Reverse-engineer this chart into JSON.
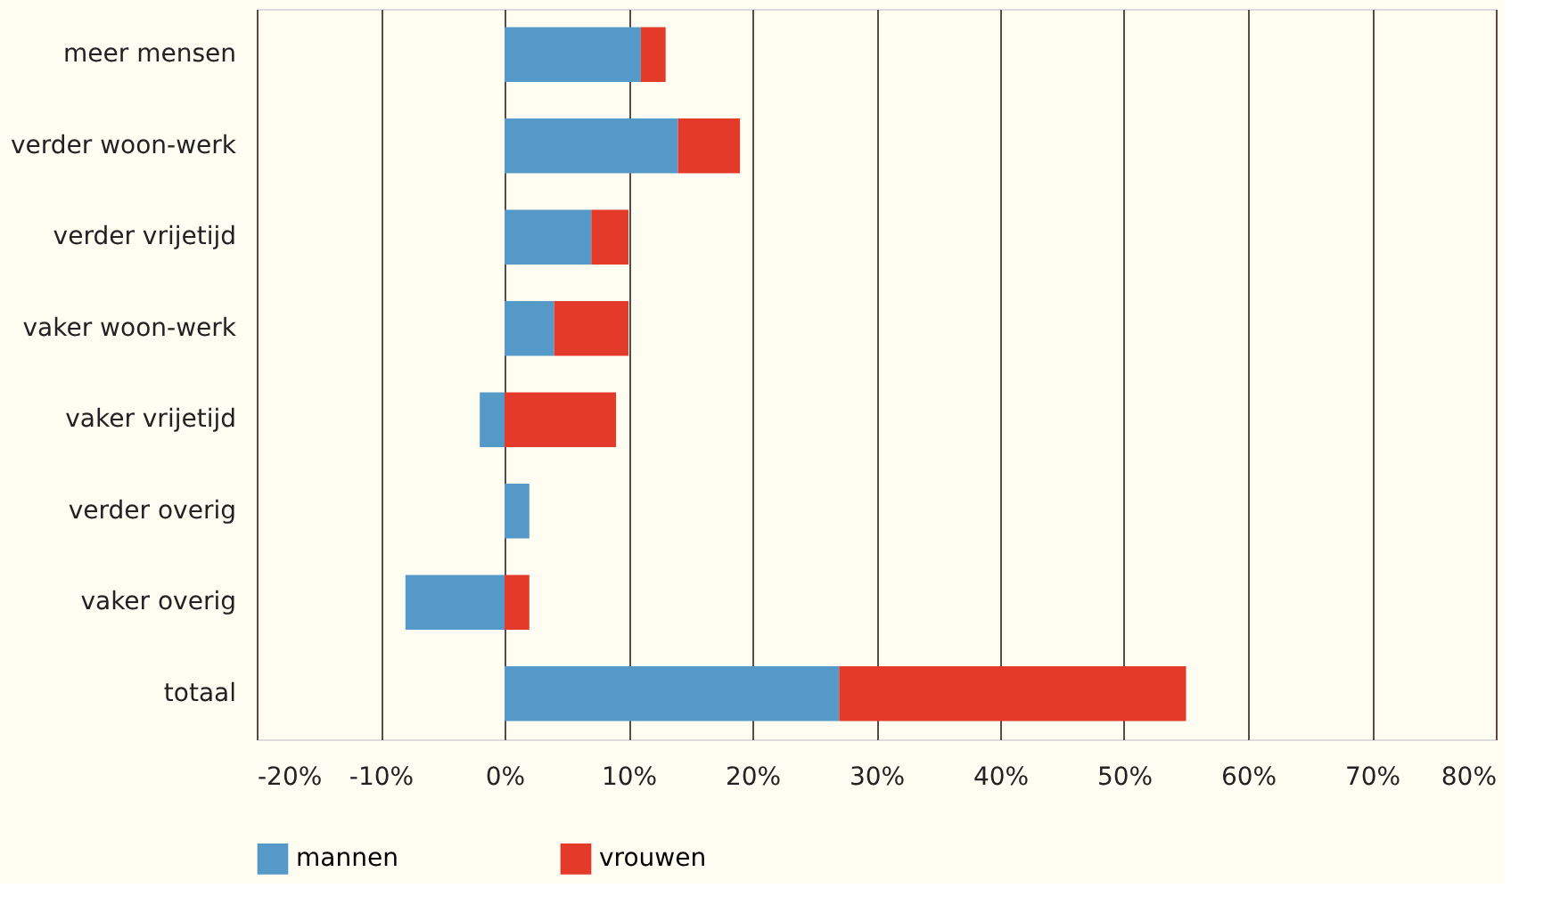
{
  "chart_data": {
    "type": "bar",
    "orientation": "horizontal",
    "stacked": true,
    "categories": [
      "meer mensen",
      "verder woon-werk",
      "verder vrijetijd",
      "vaker woon-werk",
      "vaker vrijetijd",
      "verder overig",
      "vaker overig",
      "totaal"
    ],
    "series": [
      {
        "name": "mannen",
        "color": "#5499c7",
        "values": [
          11,
          14,
          7,
          4,
          -2,
          2,
          -8,
          27
        ]
      },
      {
        "name": "vrouwen",
        "color": "#e33a29",
        "values": [
          2,
          5,
          3,
          6,
          9,
          0,
          2,
          28
        ]
      }
    ],
    "xlim": [
      -20,
      80
    ],
    "xticks": [
      {
        "value": -20,
        "label": "-20%"
      },
      {
        "value": -10,
        "label": "-10%"
      },
      {
        "value": 0,
        "label": "0%"
      },
      {
        "value": 10,
        "label": "10%"
      },
      {
        "value": 20,
        "label": "20%"
      },
      {
        "value": 30,
        "label": "30%"
      },
      {
        "value": 40,
        "label": "40%"
      },
      {
        "value": 50,
        "label": "50%"
      },
      {
        "value": 60,
        "label": "60%"
      },
      {
        "value": 70,
        "label": "70%"
      },
      {
        "value": 80,
        "label": "80%"
      }
    ],
    "grid": "x",
    "legend": "bottom"
  }
}
